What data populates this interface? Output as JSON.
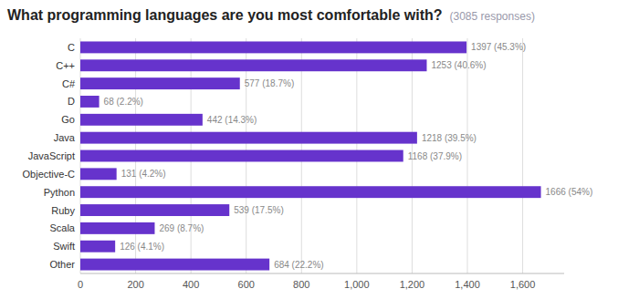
{
  "chart_data": {
    "type": "bar",
    "orientation": "horizontal",
    "title": "What programming languages are you most comfortable with?",
    "subtitle": "(3085 responses)",
    "categories": [
      "C",
      "C++",
      "C#",
      "D",
      "Go",
      "Java",
      "JavaScript",
      "Objective-C",
      "Python",
      "Ruby",
      "Scala",
      "Swift",
      "Other"
    ],
    "values": [
      1397,
      1253,
      577,
      68,
      442,
      1218,
      1168,
      131,
      1666,
      539,
      269,
      126,
      684
    ],
    "value_labels": [
      "1397 (45.3%)",
      "1253 (40.6%)",
      "577 (18.7%)",
      "68 (2.2%)",
      "442 (14.3%)",
      "1218 (39.5%)",
      "1168 (37.9%)",
      "131 (4.2%)",
      "1666 (54%)",
      "539 (17.5%)",
      "269 (8.7%)",
      "126 (4.1%)",
      "684 (22.2%)"
    ],
    "data_labels": true,
    "color": "#6633CC",
    "xlim": [
      0,
      1750
    ],
    "xticks": [
      0,
      200,
      400,
      600,
      800,
      {
        "value": 1000,
        "label": "1,000"
      },
      {
        "value": 1200,
        "label": "1,200"
      },
      {
        "value": 1400,
        "label": "1,400"
      },
      {
        "value": 1600,
        "label": "1,600"
      }
    ],
    "grid": true
  }
}
